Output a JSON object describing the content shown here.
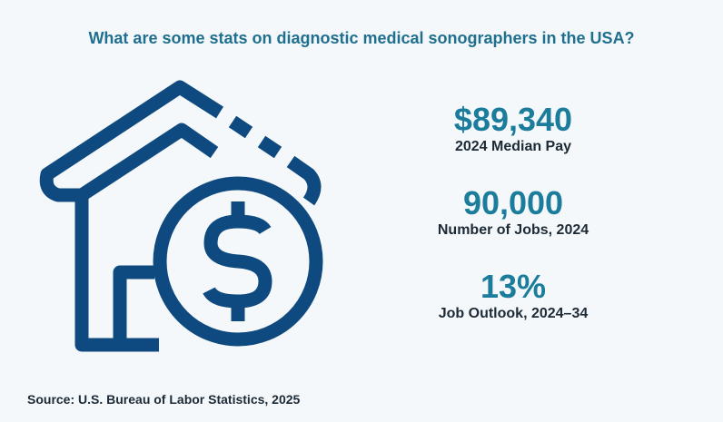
{
  "title": "What are some stats on diagnostic medical sonographers in the USA?",
  "stats": [
    {
      "value": "$89,340",
      "label": "2024 Median Pay"
    },
    {
      "value": "90,000",
      "label": "Number of Jobs, 2024"
    },
    {
      "value": "13%",
      "label": "Job Outlook, 2024–34"
    }
  ],
  "source": "Source:  U.S. Bureau of Labor Statistics, 2025"
}
